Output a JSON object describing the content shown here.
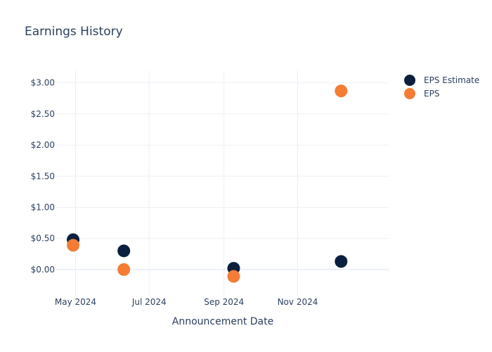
{
  "chart_data": {
    "type": "scatter",
    "title": "Earnings History",
    "xlabel": "Announcement Date",
    "ylabel": "",
    "x_ticks": [
      {
        "date": "2024-05-01",
        "label": "May 2024"
      },
      {
        "date": "2024-07-01",
        "label": "Jul 2024"
      },
      {
        "date": "2024-09-01",
        "label": "Sep 2024"
      },
      {
        "date": "2024-11-01",
        "label": "Nov 2024"
      }
    ],
    "xlim": [
      "2024-04-15",
      "2025-01-16"
    ],
    "y_ticks": [
      {
        "value": 0,
        "label": "$0.00"
      },
      {
        "value": 0.5,
        "label": "$0.50"
      },
      {
        "value": 1,
        "label": "$1.00"
      },
      {
        "value": 1.5,
        "label": "$1.50"
      },
      {
        "value": 2,
        "label": "$2.00"
      },
      {
        "value": 2.5,
        "label": "$2.50"
      },
      {
        "value": 3,
        "label": "$3.00"
      }
    ],
    "ylim": [
      -0.42,
      3.2
    ],
    "grid": true,
    "legend_position": "top-right",
    "series": [
      {
        "name": "EPS Estimate",
        "color": "#0b1f3f",
        "points": [
          {
            "x": "2024-04-29",
            "y": 0.48
          },
          {
            "x": "2024-06-10",
            "y": 0.3
          },
          {
            "x": "2024-09-09",
            "y": 0.02
          },
          {
            "x": "2024-12-07",
            "y": 0.13
          }
        ]
      },
      {
        "name": "EPS",
        "color": "#f47c35",
        "points": [
          {
            "x": "2024-04-29",
            "y": 0.39
          },
          {
            "x": "2024-06-10",
            "y": 0.0
          },
          {
            "x": "2024-09-09",
            "y": -0.11
          },
          {
            "x": "2024-12-07",
            "y": 2.87
          }
        ]
      }
    ]
  }
}
